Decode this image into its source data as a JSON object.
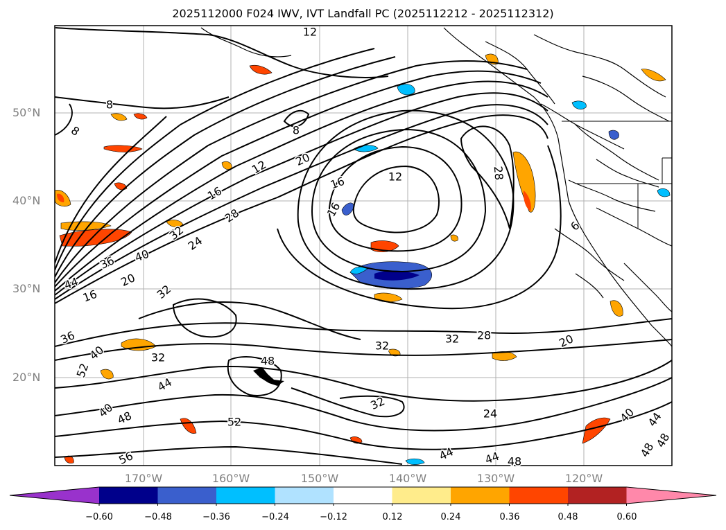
{
  "title": "2025112000 F024 IWV, IVT Landfall PC (2025112212 - 2025112312)",
  "lat_labels": [
    {
      "text": "50°N"
    },
    {
      "text": "40°N"
    },
    {
      "text": "30°N"
    },
    {
      "text": "20°N"
    }
  ],
  "lon_labels": [
    {
      "text": "170°W"
    },
    {
      "text": "160°W"
    },
    {
      "text": "150°W"
    },
    {
      "text": "140°W"
    },
    {
      "text": "130°W"
    },
    {
      "text": "120°W"
    }
  ],
  "contour_labels": [
    {
      "text": "12"
    },
    {
      "text": "20"
    },
    {
      "text": "16"
    },
    {
      "text": "12"
    },
    {
      "text": "28"
    },
    {
      "text": "16"
    },
    {
      "text": "16"
    },
    {
      "text": "28"
    },
    {
      "text": "32"
    },
    {
      "text": "24"
    },
    {
      "text": "36"
    },
    {
      "text": "40"
    },
    {
      "text": "44"
    },
    {
      "text": "16"
    },
    {
      "text": "20"
    },
    {
      "text": "32"
    },
    {
      "text": "8"
    },
    {
      "text": "8"
    },
    {
      "text": "8"
    },
    {
      "text": "12"
    },
    {
      "text": "6"
    },
    {
      "text": "32"
    },
    {
      "text": "28"
    },
    {
      "text": "32"
    },
    {
      "text": "20"
    },
    {
      "text": "36"
    },
    {
      "text": "40"
    },
    {
      "text": "52"
    },
    {
      "text": "32"
    },
    {
      "text": "48"
    },
    {
      "text": "44"
    },
    {
      "text": "40"
    },
    {
      "text": "48"
    },
    {
      "text": "52"
    },
    {
      "text": "56"
    },
    {
      "text": "32"
    },
    {
      "text": "24"
    },
    {
      "text": "44"
    },
    {
      "text": "44"
    },
    {
      "text": "48"
    },
    {
      "text": "40"
    },
    {
      "text": "44"
    },
    {
      "text": "48"
    },
    {
      "text": "48"
    }
  ],
  "colorbar": {
    "colors": [
      "#9932cc",
      "#00008b",
      "#3a5fcd",
      "#00bfff",
      "#b0e2ff",
      "#ffffff",
      "#ffec8b",
      "#ffa500",
      "#ff4500",
      "#b22222",
      "#ff88aa"
    ],
    "tick_labels": [
      "−0.60",
      "−0.48",
      "−0.36",
      "−0.24",
      "−0.12",
      "0.12",
      "0.24",
      "0.36",
      "0.48",
      "0.60"
    ]
  }
}
